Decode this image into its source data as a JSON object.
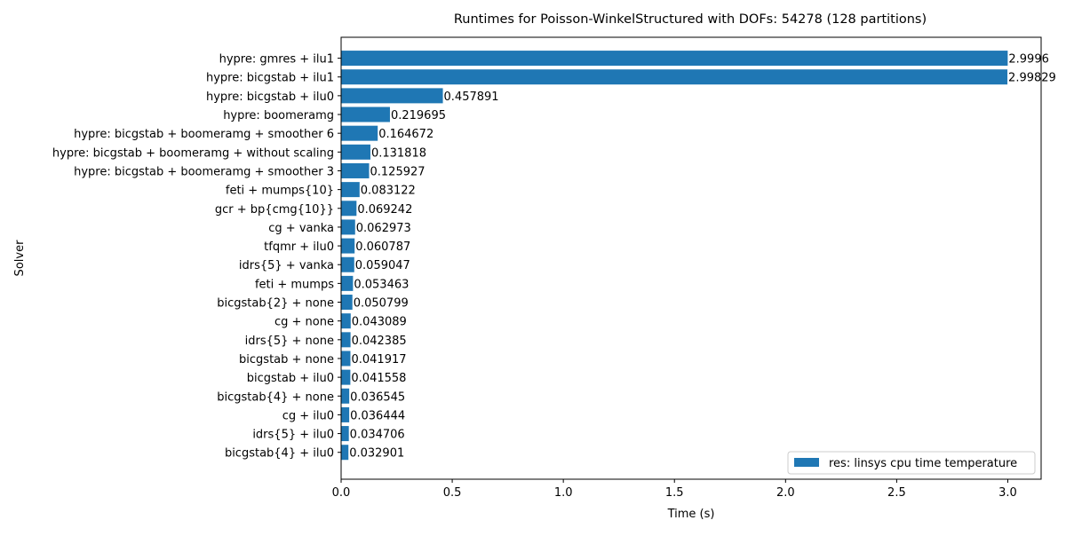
{
  "chart_data": {
    "type": "bar",
    "orientation": "horizontal",
    "title": "Runtimes for Poisson-WinkelStructured with DOFs: 54278 (128 partitions)",
    "xlabel": "Time (s)",
    "ylabel": "Solver",
    "xlim": [
      0,
      3.15
    ],
    "x_ticks": [
      "0.0",
      "0.5",
      "1.0",
      "1.5",
      "2.0",
      "2.5",
      "3.0"
    ],
    "x_tick_values": [
      0.0,
      0.5,
      1.0,
      1.5,
      2.0,
      2.5,
      3.0
    ],
    "bar_color": "#1f77b4",
    "legend": {
      "position": "lower-right",
      "entries": [
        "res: linsys cpu time temperature"
      ]
    },
    "grid": false,
    "categories": [
      "hypre: gmres + ilu1",
      "hypre: bicgstab + ilu1",
      "hypre: bicgstab + ilu0",
      "hypre: boomeramg",
      "hypre: bicgstab + boomeramg + smoother 6",
      "hypre: bicgstab + boomeramg + without scaling",
      "hypre: bicgstab + boomeramg + smoother 3",
      "feti + mumps{10}",
      "gcr + bp{cmg{10}}",
      "cg + vanka",
      "tfqmr + ilu0",
      "idrs{5} + vanka",
      "feti + mumps",
      "bicgstab{2} + none",
      "cg + none",
      "idrs{5} + none",
      "bicgstab + none",
      "bicgstab + ilu0",
      "bicgstab{4} + none",
      "cg + ilu0",
      "idrs{5} + ilu0",
      "bicgstab{4} + ilu0"
    ],
    "values": [
      2.9996,
      2.99829,
      0.457891,
      0.219695,
      0.164672,
      0.131818,
      0.125927,
      0.083122,
      0.069242,
      0.062973,
      0.060787,
      0.059047,
      0.053463,
      0.050799,
      0.043089,
      0.042385,
      0.041917,
      0.041558,
      0.036545,
      0.036444,
      0.034706,
      0.032901
    ],
    "value_labels": [
      "2.9996",
      "2.99829",
      "0.457891",
      "0.219695",
      "0.164672",
      "0.131818",
      "0.125927",
      "0.083122",
      "0.069242",
      "0.062973",
      "0.060787",
      "0.059047",
      "0.053463",
      "0.050799",
      "0.043089",
      "0.042385",
      "0.041917",
      "0.041558",
      "0.036545",
      "0.036444",
      "0.034706",
      "0.032901"
    ]
  }
}
